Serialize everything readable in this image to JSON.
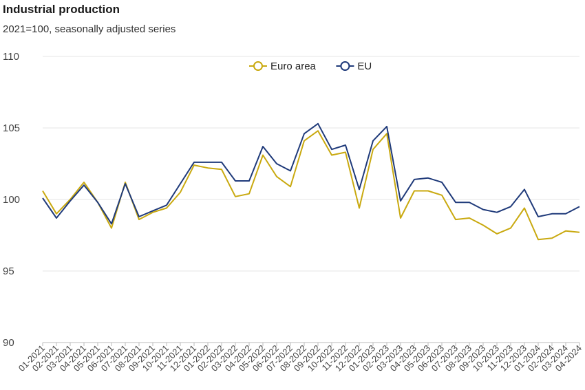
{
  "title": "Industrial production",
  "subtitle": "2021=100, seasonally adjusted series",
  "chart_data": {
    "type": "line",
    "title": "Industrial production",
    "subtitle": "2021=100, seasonally adjusted series",
    "xlabel": "",
    "ylabel": "",
    "ylim": [
      90,
      110
    ],
    "yticks": [
      90,
      95,
      100,
      105,
      110
    ],
    "grid": true,
    "legend_position": "top-center",
    "categories": [
      "01-2021",
      "02-2021",
      "03-2021",
      "04-2021",
      "05-2021",
      "06-2021",
      "07-2021",
      "08-2021",
      "09-2021",
      "10-2021",
      "11-2021",
      "12-2021",
      "01-2022",
      "02-2022",
      "03-2022",
      "04-2022",
      "05-2022",
      "06-2022",
      "07-2022",
      "08-2022",
      "09-2022",
      "10-2022",
      "11-2022",
      "12-2022",
      "01-2023",
      "02-2023",
      "03-2023",
      "04-2023",
      "05-2023",
      "06-2023",
      "07-2023",
      "08-2023",
      "09-2023",
      "10-2023",
      "11-2023",
      "12-2023",
      "01-2024",
      "02-2024",
      "03-2024",
      "04-2024"
    ],
    "series": [
      {
        "name": "Euro area",
        "color": "#c9a90f",
        "values": [
          100.6,
          99.0,
          100.0,
          101.2,
          99.8,
          98.0,
          101.2,
          98.6,
          99.1,
          99.4,
          100.5,
          102.4,
          102.2,
          102.1,
          100.2,
          100.4,
          103.1,
          101.6,
          100.9,
          104.1,
          104.8,
          103.1,
          103.3,
          99.4,
          103.5,
          104.6,
          98.7,
          100.6,
          100.6,
          100.3,
          98.6,
          98.7,
          98.2,
          97.6,
          98.0,
          99.4,
          97.2,
          97.3,
          97.8,
          97.7
        ]
      },
      {
        "name": "EU",
        "color": "#1f3a7a",
        "values": [
          100.1,
          98.7,
          99.9,
          101.0,
          99.8,
          98.3,
          101.1,
          98.8,
          99.2,
          99.6,
          101.1,
          102.6,
          102.6,
          102.6,
          101.3,
          101.3,
          103.7,
          102.5,
          102.0,
          104.6,
          105.3,
          103.5,
          103.8,
          100.7,
          104.1,
          105.1,
          99.9,
          101.4,
          101.5,
          101.2,
          99.8,
          99.8,
          99.3,
          99.1,
          99.5,
          100.7,
          98.8,
          99.0,
          99.0,
          99.5
        ]
      }
    ]
  }
}
